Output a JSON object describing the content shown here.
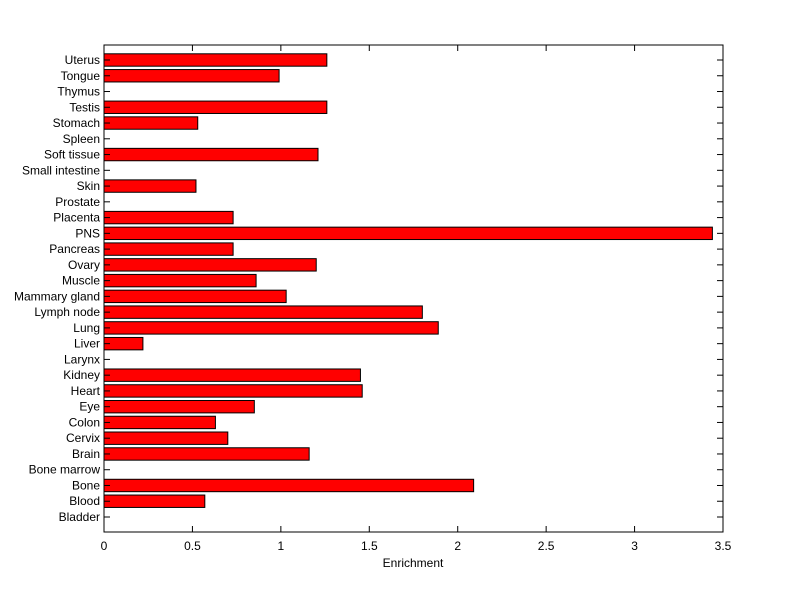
{
  "chart_data": {
    "type": "bar",
    "orientation": "horizontal",
    "title": "",
    "xlabel": "Enrichment",
    "ylabel": "",
    "xlim": [
      0,
      3.5
    ],
    "xticks": [
      0,
      0.5,
      1,
      1.5,
      2,
      2.5,
      3,
      3.5
    ],
    "xtick_labels": [
      "0",
      "0.5",
      "1",
      "1.5",
      "2",
      "2.5",
      "3",
      "3.5"
    ],
    "grid": false,
    "legend": "none",
    "categories": [
      "Bladder",
      "Blood",
      "Bone",
      "Bone marrow",
      "Brain",
      "Cervix",
      "Colon",
      "Eye",
      "Heart",
      "Kidney",
      "Larynx",
      "Liver",
      "Lung",
      "Lymph node",
      "Mammary gland",
      "Muscle",
      "Ovary",
      "Pancreas",
      "PNS",
      "Placenta",
      "Prostate",
      "Skin",
      "Small intestine",
      "Soft tissue",
      "Spleen",
      "Stomach",
      "Testis",
      "Thymus",
      "Tongue",
      "Uterus"
    ],
    "values": [
      0,
      0.57,
      2.09,
      0,
      1.16,
      0.7,
      0.63,
      0.85,
      1.46,
      1.45,
      0,
      0.22,
      1.89,
      1.8,
      1.03,
      0.86,
      1.2,
      0.73,
      3.44,
      0.73,
      0,
      0.52,
      0,
      1.21,
      0,
      0.53,
      1.26,
      0,
      0.99,
      1.26
    ],
    "bar_color": "#ff0000",
    "edge_color": "#000000"
  }
}
